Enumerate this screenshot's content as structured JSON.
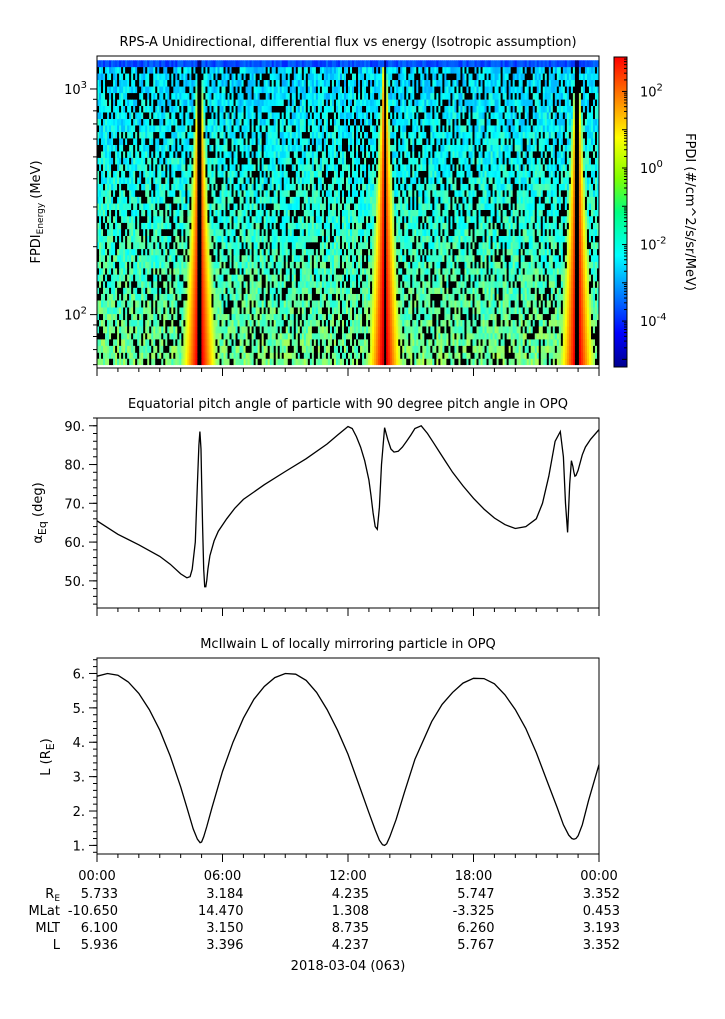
{
  "chart_data": [
    {
      "type": "heatmap",
      "title": "RPS-A Unidirectional, differential flux vs energy (Isotropic assumption)",
      "ylabel_main": "FPDI",
      "ylabel_sub": "Energy",
      "ylabel_unit": " (MeV)",
      "y_scale": "log",
      "ylim": [
        58,
        1400
      ],
      "yticks": [
        {
          "value": 100,
          "base": "10",
          "exp": "2"
        },
        {
          "value": 1000,
          "base": "10",
          "exp": "3"
        }
      ],
      "xlim": [
        0,
        24
      ],
      "energy_bins": [
        60,
        64,
        68,
        73,
        78,
        83,
        89,
        95,
        101,
        108,
        116,
        124,
        132,
        141,
        151,
        161,
        172,
        184,
        196,
        210,
        224,
        240,
        256,
        274,
        292,
        312,
        334,
        357,
        381,
        407,
        435,
        465,
        497,
        531,
        567,
        606,
        647,
        692,
        739,
        790,
        844,
        901,
        963,
        1029,
        1100,
        1175,
        1255,
        1340
      ],
      "high_flux_times_hours": [
        4.9,
        13.75,
        22.95
      ],
      "colorbar": {
        "label": "FPDI (#/cm^2/s/sr/MeV)",
        "scale": "log",
        "range": [
          -5.2,
          2.9
        ],
        "ticks": [
          {
            "value": 2,
            "base": "10",
            "exp": "2"
          },
          {
            "value": 0,
            "base": "10",
            "exp": "0"
          },
          {
            "value": -2,
            "base": "10",
            "exp": "-2"
          },
          {
            "value": -4,
            "base": "10",
            "exp": "-4"
          }
        ]
      }
    },
    {
      "type": "line",
      "title": "Equatorial pitch angle of particle with 90 degree pitch angle in OPQ",
      "ylabel_main": "α",
      "ylabel_sub": "Eq",
      "ylabel_unit": " (deg)",
      "ylim": [
        43,
        92
      ],
      "xlim": [
        0,
        24
      ],
      "yticks": [
        "50.",
        "60.",
        "70.",
        "80.",
        "90."
      ],
      "series": [
        {
          "x": [
            0,
            1,
            2,
            3,
            3.5,
            4,
            4.3,
            4.45,
            4.55,
            4.7,
            4.8,
            4.87,
            4.92,
            4.97,
            5.0,
            5.05,
            5.1,
            5.15,
            5.2,
            5.25,
            5.3,
            5.4,
            5.6,
            5.8,
            6.2,
            6.6,
            7,
            8,
            9,
            10,
            11,
            11.5,
            12,
            12.2,
            12.4,
            12.6,
            12.8,
            13.0,
            13.1,
            13.2,
            13.3,
            13.4,
            13.5,
            13.6,
            13.75,
            13.9,
            14.05,
            14.2,
            14.4,
            14.6,
            14.8,
            15.0,
            15.2,
            15.5,
            15.8,
            16.1,
            16.4,
            16.7,
            17.0,
            17.5,
            18,
            18.5,
            19,
            19.5,
            20,
            20.5,
            21,
            21.3,
            21.6,
            21.9,
            22.15,
            22.3,
            22.4,
            22.5,
            22.6,
            22.68,
            22.75,
            22.8,
            22.85,
            22.9,
            23.0,
            23.1,
            23.2,
            23.35,
            23.6,
            24
          ],
          "y": [
            65.5,
            62,
            59.3,
            56.3,
            54.3,
            51.8,
            50.8,
            51.1,
            53,
            60,
            75,
            85,
            88.5,
            84,
            76,
            64,
            53,
            48.5,
            48.5,
            50.2,
            53,
            56.5,
            60.3,
            62.8,
            66,
            68.8,
            71,
            74.8,
            78.2,
            81.5,
            85.3,
            87.6,
            89.8,
            89.3,
            87.2,
            84.5,
            81,
            76,
            72,
            67.5,
            64,
            63.3,
            69,
            80,
            89.5,
            86.5,
            84,
            83.2,
            83.4,
            84.5,
            86,
            87.6,
            89.3,
            90,
            88,
            85.5,
            83,
            80.5,
            78,
            74.5,
            71.3,
            68.5,
            66.2,
            64.5,
            63.5,
            64,
            66,
            70,
            77,
            86,
            88.5,
            82,
            70,
            62.5,
            75,
            81,
            79.5,
            78,
            77,
            77.2,
            78.5,
            80.5,
            82.5,
            84.5,
            86.5,
            89
          ]
        }
      ]
    },
    {
      "type": "line",
      "title": "McIlwain L of locally mirroring particle in OPQ",
      "ylabel_main": "L (R",
      "ylabel_sub": "E",
      "ylabel_unit": ")",
      "ylim": [
        0.75,
        6.45
      ],
      "xlim": [
        0,
        24
      ],
      "yticks": [
        "1.",
        "2.",
        "3.",
        "4.",
        "5.",
        "6."
      ],
      "series": [
        {
          "x": [
            0,
            0.5,
            1,
            1.5,
            2,
            2.5,
            3,
            3.5,
            4,
            4.3,
            4.6,
            4.8,
            4.93,
            5.0,
            5.1,
            5.25,
            5.5,
            6,
            6.5,
            7,
            7.5,
            8,
            8.5,
            9,
            9.5,
            10,
            10.5,
            11,
            11.5,
            12,
            12.5,
            13,
            13.3,
            13.5,
            13.65,
            13.75,
            13.85,
            14.0,
            14.3,
            14.7,
            15.2,
            16,
            16.5,
            17,
            17.5,
            18,
            18.5,
            19,
            19.5,
            20,
            20.5,
            21,
            21.5,
            22,
            22.3,
            22.55,
            22.7,
            22.8,
            22.9,
            23.0,
            23.2,
            23.5,
            24
          ],
          "y": [
            5.92,
            6.0,
            5.95,
            5.75,
            5.42,
            4.95,
            4.35,
            3.6,
            2.7,
            2.1,
            1.48,
            1.18,
            1.08,
            1.1,
            1.25,
            1.55,
            2.1,
            3.15,
            4.0,
            4.7,
            5.25,
            5.62,
            5.88,
            6.0,
            5.98,
            5.8,
            5.45,
            4.95,
            4.35,
            3.65,
            2.8,
            1.95,
            1.45,
            1.15,
            1.02,
            1.0,
            1.05,
            1.25,
            1.75,
            2.55,
            3.5,
            4.6,
            5.1,
            5.45,
            5.72,
            5.86,
            5.85,
            5.7,
            5.38,
            4.95,
            4.4,
            3.7,
            2.9,
            2.1,
            1.6,
            1.3,
            1.2,
            1.18,
            1.2,
            1.28,
            1.6,
            2.3,
            3.35
          ]
        }
      ]
    }
  ],
  "time_axis": {
    "tick_labels": [
      "00:00",
      "06:00",
      "12:00",
      "18:00",
      "00:00"
    ],
    "tick_hours": [
      0,
      6,
      12,
      18,
      24
    ],
    "date_label": "2018-03-04 (063)"
  },
  "ephemeris": {
    "rows": [
      {
        "label_main": "R",
        "label_sub": "E",
        "values": [
          "5.733",
          "3.184",
          "4.235",
          "5.747",
          "3.352"
        ]
      },
      {
        "label_main": "MLat",
        "label_sub": "",
        "values": [
          "-10.650",
          "14.470",
          "1.308",
          "-3.325",
          "0.453"
        ]
      },
      {
        "label_main": "MLT",
        "label_sub": "",
        "values": [
          "6.100",
          "3.150",
          "8.735",
          "6.260",
          "3.193"
        ]
      },
      {
        "label_main": "L",
        "label_sub": "",
        "values": [
          "5.936",
          "3.396",
          "4.237",
          "5.767",
          "3.352"
        ]
      }
    ]
  }
}
